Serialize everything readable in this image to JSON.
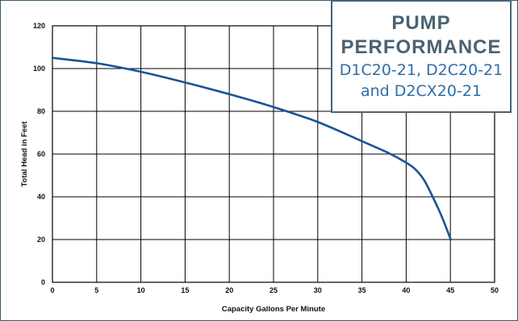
{
  "colors": {
    "curve": "#1a5496",
    "grid": "#000000",
    "title": "#4a6274",
    "subtitle": "#2e6ea8",
    "frame": "#3c5a6e"
  },
  "title_box": {
    "line1": "PUMP",
    "line2": "PERFORMANCE",
    "line3": "D1C20-21, D2C20-21",
    "line4": "and D2CX20-21"
  },
  "chart_data": {
    "type": "line",
    "title": "PUMP PERFORMANCE",
    "subtitle": "D1C20-21, D2C20-21 and D2CX20-21",
    "xlabel": "Capacity Gallons Per Minute",
    "ylabel": "Total Head in Feet",
    "xlim": [
      0,
      50
    ],
    "ylim": [
      0,
      120
    ],
    "xticks": [
      0,
      5,
      10,
      15,
      20,
      25,
      30,
      35,
      40,
      45,
      50
    ],
    "yticks": [
      0,
      20,
      40,
      60,
      80,
      100,
      120
    ],
    "xtick_labels": [
      "0",
      "5",
      "10",
      "15",
      "20",
      "25",
      "30",
      "35",
      "40",
      "45",
      "50"
    ],
    "ytick_labels": [
      "0",
      "20",
      "40",
      "60",
      "80",
      "100",
      "120"
    ],
    "grid": true,
    "series": [
      {
        "x": [
          0,
          5,
          10,
          15,
          20,
          25,
          30,
          35,
          38,
          40,
          41,
          42,
          43,
          44,
          45
        ],
        "y": [
          105,
          102.5,
          98.5,
          93.5,
          88,
          82,
          75,
          66,
          60.5,
          56,
          53,
          48,
          40,
          31,
          20.5
        ]
      }
    ]
  }
}
